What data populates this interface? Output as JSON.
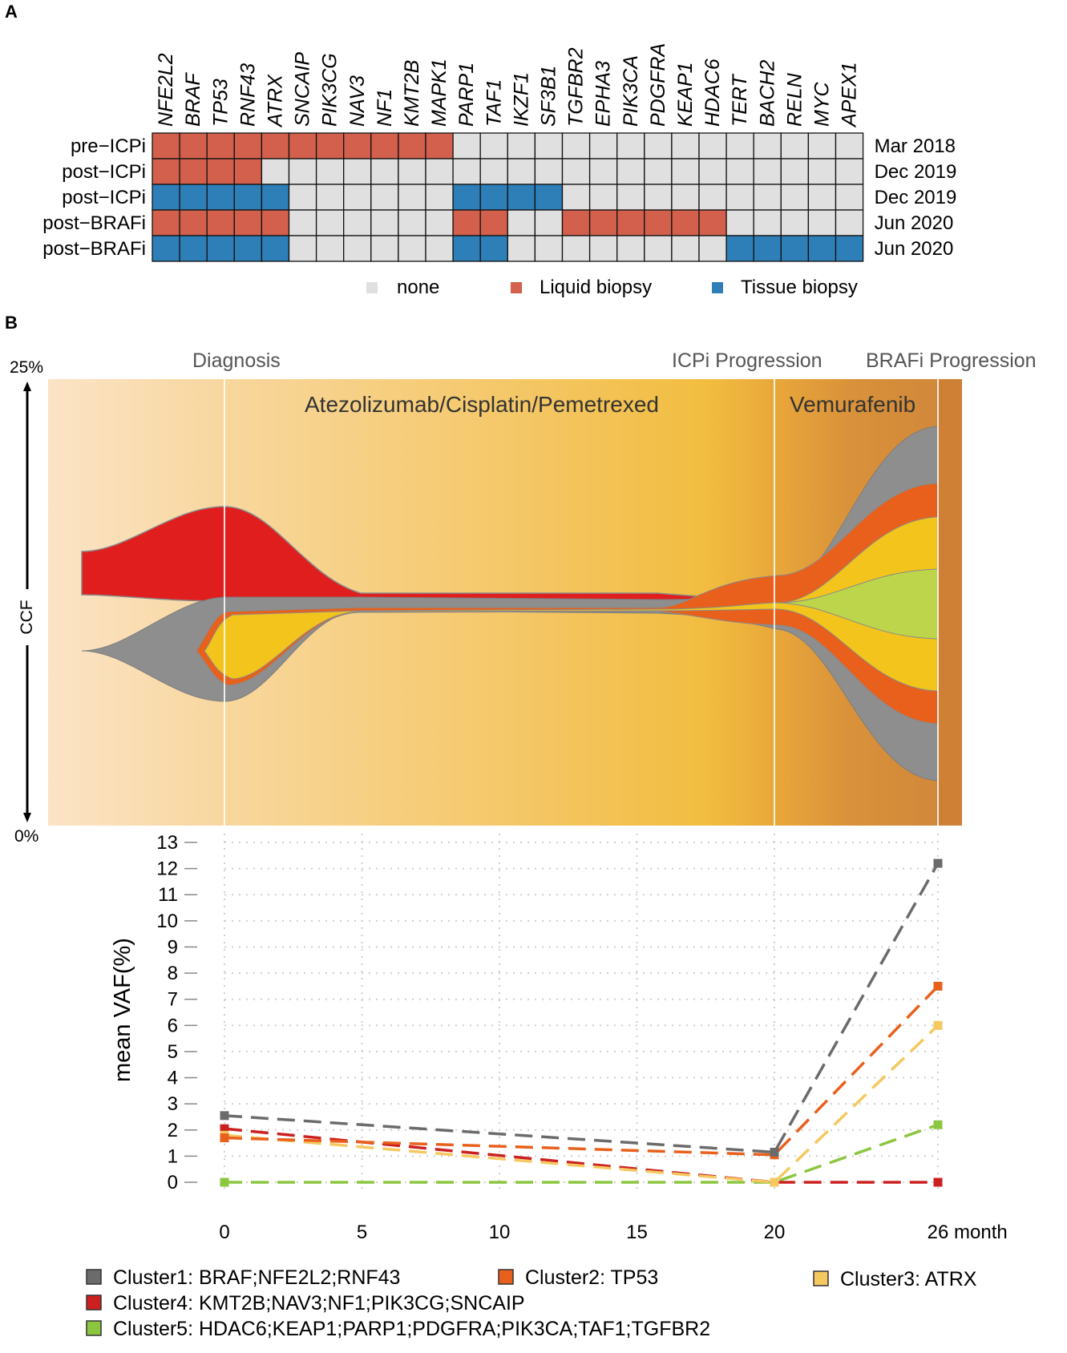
{
  "panels": {
    "a": "A",
    "b": "B"
  },
  "heatmap": {
    "genes": [
      "NFE2L2",
      "BRAF",
      "TP53",
      "RNF43",
      "ATRX",
      "SNCAIP",
      "PIK3CG",
      "NAV3",
      "NF1",
      "KMT2B",
      "MAPK1",
      "PARP1",
      "TAF1",
      "IKZF1",
      "SF3B1",
      "TGFBR2",
      "EPHA3",
      "PIK3CA",
      "PDGFRA",
      "KEAP1",
      "HDAC6",
      "TERT",
      "BACH2",
      "RELN",
      "MYC",
      "APEX1"
    ],
    "rows": [
      {
        "label": "pre−ICPi",
        "date": "Mar 2018",
        "cells": "LLLLLLLLLLLNNNNNNNNNNNNNNN"
      },
      {
        "label": "post−ICPi",
        "date": "Dec 2019",
        "cells": "LLLLNNNNNNNNNNNNNNNNNNNNNN"
      },
      {
        "label": "post−ICPi",
        "date": "Dec 2019",
        "cells": "TTTTTNNNNNNTTTTNNNNNNNNNNN"
      },
      {
        "label": "post−BRAFi",
        "date": "Jun 2020",
        "cells": "LLLLLNNNNNNLLNNLLLLLLNNNNN"
      },
      {
        "label": "post−BRAFi",
        "date": "Jun 2020",
        "cells": "TTTTTNNNNNNTTNNNNNNNNTTTTT"
      }
    ],
    "legend": [
      {
        "key": "N",
        "label": "none",
        "color": "#e0e0e0"
      },
      {
        "key": "L",
        "label": "Liquid biopsy",
        "color": "#d2604c"
      },
      {
        "key": "T",
        "label": "Tissue biopsy",
        "color": "#2e7fb8"
      }
    ]
  },
  "fish": {
    "ytop": "25%",
    "ybottom": "0%",
    "ylabel": "CCF",
    "events": [
      "Diagnosis",
      "ICPi Progression",
      "BRAFi Progression"
    ],
    "therapies": [
      "Atezolizumab/Cisplatin/Pemetrexed",
      "Vemurafenib"
    ]
  },
  "chart_data": {
    "type": "line",
    "title": "",
    "xlabel": "month",
    "ylabel": "mean VAF(%)",
    "x": [
      0,
      20,
      26
    ],
    "xticks": [
      0,
      5,
      10,
      15,
      20,
      26
    ],
    "yticks": [
      0,
      1,
      2,
      3,
      4,
      5,
      6,
      7,
      8,
      9,
      10,
      11,
      12,
      13
    ],
    "ylim": [
      0,
      13
    ],
    "series": [
      {
        "name": "Cluster1: BRAF;NFE2L2;RNF43",
        "color": "#6b6b6b",
        "values": [
          2.55,
          1.15,
          12.2
        ]
      },
      {
        "name": "Cluster2: TP53",
        "color": "#e8601c",
        "values": [
          1.7,
          1.05,
          7.5
        ]
      },
      {
        "name": "Cluster3: ATRX",
        "color": "#f5c860",
        "values": [
          1.8,
          0.0,
          6.0
        ]
      },
      {
        "name": "Cluster4: KMT2B;NAV3;NF1;PIK3CG;SNCAIP",
        "color": "#cc2020",
        "values": [
          2.05,
          0.0,
          0.0
        ]
      },
      {
        "name": "Cluster5: HDAC6;KEAP1;PARP1;PDGFRA;PIK3CA;TAF1;TGFBR2",
        "color": "#8cc63f",
        "values": [
          0.0,
          0.0,
          2.2
        ]
      }
    ]
  }
}
